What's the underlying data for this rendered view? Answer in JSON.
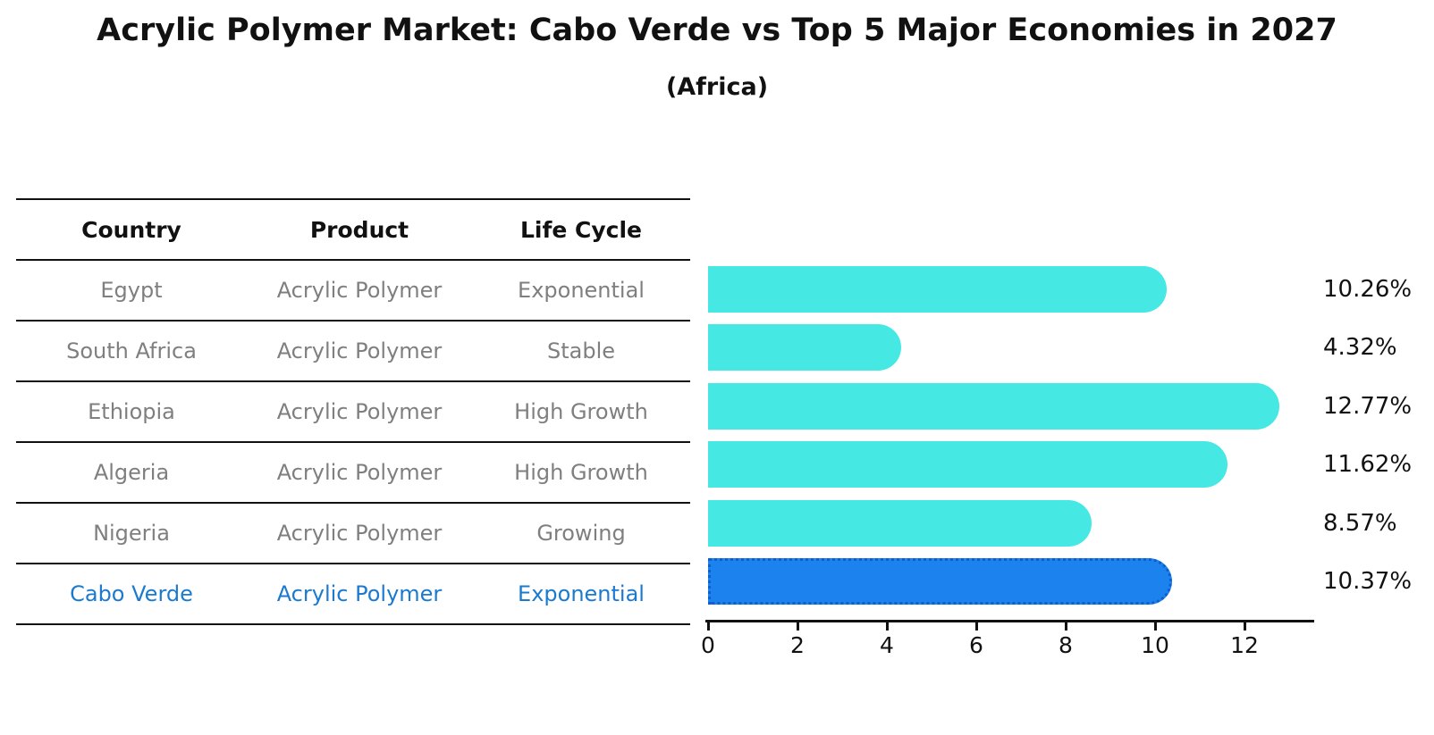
{
  "title": "Acrylic Polymer Market: Cabo Verde vs Top 5 Major Economies in 2027",
  "subtitle": "(Africa)",
  "table": {
    "headers": [
      "Country",
      "Product",
      "Life Cycle"
    ],
    "rows": [
      {
        "country": "Egypt",
        "product": "Acrylic Polymer",
        "life_cycle": "Exponential",
        "highlight": false
      },
      {
        "country": "South Africa",
        "product": "Acrylic Polymer",
        "life_cycle": "Stable",
        "highlight": false
      },
      {
        "country": "Ethiopia",
        "product": "Acrylic Polymer",
        "life_cycle": "High Growth",
        "highlight": false
      },
      {
        "country": "Algeria",
        "product": "Acrylic Polymer",
        "life_cycle": "High Growth",
        "highlight": false
      },
      {
        "country": "Nigeria",
        "product": "Acrylic Polymer",
        "life_cycle": "Growing",
        "highlight": false
      },
      {
        "country": "Cabo Verde",
        "product": "Acrylic Polymer",
        "life_cycle": "Exponential",
        "highlight": true
      }
    ]
  },
  "chart_data": {
    "type": "bar",
    "orientation": "horizontal",
    "categories": [
      "Egypt",
      "South Africa",
      "Ethiopia",
      "Algeria",
      "Nigeria",
      "Cabo Verde"
    ],
    "values": [
      10.26,
      4.32,
      12.77,
      11.62,
      8.57,
      10.37
    ],
    "value_labels": [
      "10.26%",
      "4.32%",
      "12.77%",
      "11.62%",
      "8.57%",
      "10.37%"
    ],
    "highlight_index": 5,
    "x_ticks": [
      0,
      2,
      4,
      6,
      8,
      10,
      12
    ],
    "xlim": [
      0,
      13.56
    ],
    "grid": false,
    "legend": null,
    "title": "Acrylic Polymer Market: Cabo Verde vs Top 5 Major Economies in 2027 (Africa)",
    "xlabel": "",
    "ylabel": ""
  },
  "colors": {
    "bar": "#45e8e2",
    "highlight_bar": "#1b82ee",
    "highlight_border": "#0e5ecf",
    "highlight_text": "#1b7ad0",
    "row_text": "#7f7f7f",
    "axis": "#111111"
  }
}
